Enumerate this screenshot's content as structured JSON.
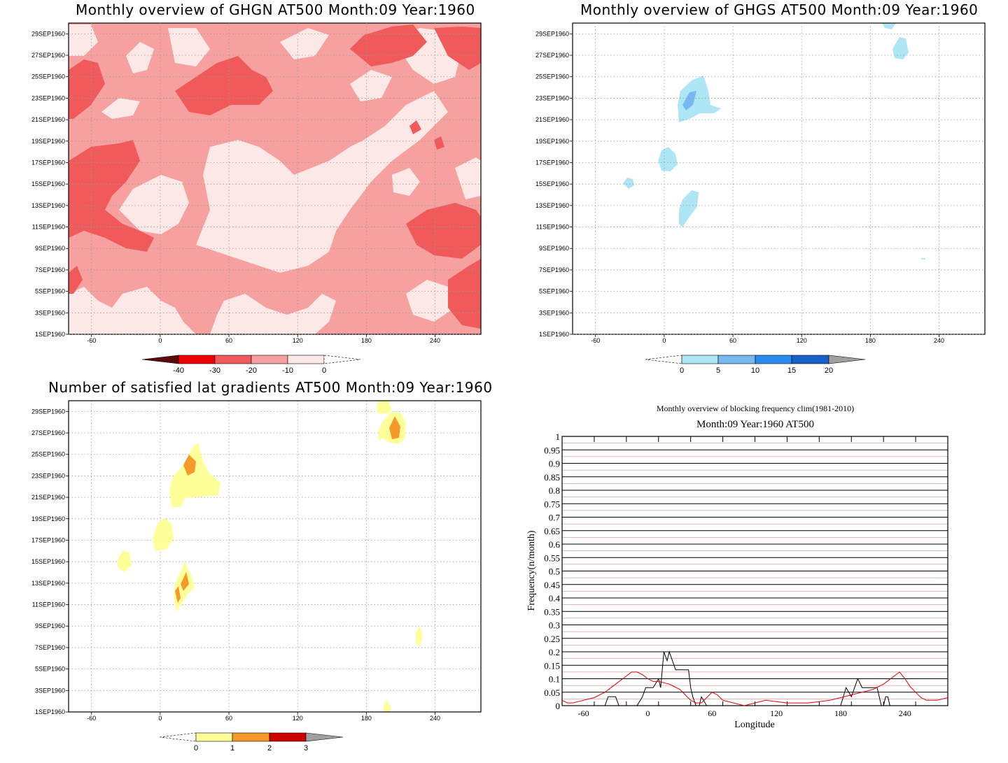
{
  "panels": {
    "p1": {
      "title": "Monthly overview of GHGN AT500 Month:09 Year:1960"
    },
    "p2": {
      "title": "Monthly overview of GHGS AT500 Month:09 Year:1960"
    },
    "p3": {
      "title": "Number of satisfied lat gradients AT500 Month:09 Year:1960"
    }
  },
  "common_axes": {
    "x_ticks": [
      "-60",
      "0",
      "60",
      "120",
      "180",
      "240"
    ],
    "x_tick_values": [
      -60,
      0,
      60,
      120,
      180,
      240
    ],
    "x_range": [
      -80,
      280
    ],
    "y_ticks": [
      "1SEP1960",
      "3SEP1960",
      "5SEP1960",
      "7SEP1960",
      "9SEP1960",
      "11SEP1960",
      "13SEP1960",
      "15SEP1960",
      "17SEP1960",
      "19SEP1960",
      "21SEP1960",
      "23SEP1960",
      "25SEP1960",
      "27SEP1960",
      "29SEP1960"
    ],
    "y_tick_values": [
      1,
      3,
      5,
      7,
      9,
      11,
      13,
      15,
      17,
      19,
      21,
      23,
      25,
      27,
      29
    ],
    "y_range": [
      1,
      30
    ]
  },
  "colorbars": {
    "p1": {
      "labels": [
        "-40",
        "-30",
        "-20",
        "-10",
        "0"
      ],
      "colors": [
        "#5a0a08",
        "#ee0000",
        "#f05a5a",
        "#f7a0a0",
        "#fde8e8"
      ]
    },
    "p2": {
      "labels": [
        "0",
        "5",
        "10",
        "15",
        "20"
      ],
      "colors": [
        "#aee6f5",
        "#78b8f0",
        "#2a8aee",
        "#1660c8",
        "#a0a0a0"
      ]
    },
    "p3": {
      "labels": [
        "0",
        "1",
        "2",
        "3"
      ],
      "colors": [
        "#ffff99",
        "#f59a2a",
        "#cc0000",
        "#a0a0a0"
      ]
    }
  },
  "chart_data": [
    {
      "type": "heatmap",
      "title": "Monthly overview of GHGN AT500 Month:09 Year:1960",
      "xlim": [
        -80,
        280
      ],
      "ylim": [
        1,
        30
      ],
      "legend_levels": [
        -40,
        -30,
        -20,
        -10,
        0
      ]
    },
    {
      "type": "heatmap",
      "title": "Monthly overview of GHGS AT500 Month:09 Year:1960",
      "xlim": [
        -80,
        280
      ],
      "ylim": [
        1,
        30
      ],
      "legend_levels": [
        0,
        5,
        10,
        15,
        20
      ]
    },
    {
      "type": "heatmap",
      "title": "Number of satisfied lat gradients AT500 Month:09 Year:1960",
      "xlim": [
        -80,
        280
      ],
      "ylim": [
        1,
        30
      ],
      "legend_levels": [
        0,
        1,
        2,
        3
      ]
    },
    {
      "type": "line",
      "title": "Monthly overview of blocking frequency clim(1981-2010)",
      "subtitle": "Month:09 Year:1960  AT500",
      "xlabel": "Longitude",
      "ylabel": "Frequency(n/month)",
      "xlim": [
        -80,
        280
      ],
      "ylim": [
        0,
        1
      ],
      "x_ticks": [
        "-60",
        "0",
        "60",
        "120",
        "180",
        "240"
      ],
      "x_tick_values": [
        -60,
        0,
        60,
        120,
        180,
        240
      ],
      "y_ticks": [
        "0",
        "0.05",
        "0.1",
        "0.15",
        "0.2",
        "0.25",
        "0.3",
        "0.35",
        "0.4",
        "0.45",
        "0.5",
        "0.55",
        "0.6",
        "0.65",
        "0.7",
        "0.75",
        "0.8",
        "0.85",
        "0.9",
        "0.95",
        "1"
      ],
      "series": [
        {
          "color": "#000000",
          "x": [
            -80,
            -40,
            -37,
            -34,
            -30,
            -27,
            -10,
            -5,
            -2,
            0,
            5,
            10,
            12,
            15,
            18,
            20,
            23,
            26,
            30,
            35,
            38,
            40,
            42,
            45,
            48,
            50,
            55,
            60,
            180,
            185,
            190,
            193,
            196,
            200,
            203,
            206,
            210,
            214,
            218,
            220,
            222,
            224,
            226,
            230,
            240,
            280
          ],
          "y": [
            0,
            0,
            0.033,
            0.033,
            0.033,
            0,
            0,
            0.033,
            0.067,
            0.067,
            0.067,
            0.1,
            0.067,
            0.2,
            0.167,
            0.2,
            0.167,
            0.133,
            0.133,
            0.133,
            0.133,
            0.067,
            0.033,
            0,
            0,
            0.033,
            0,
            0,
            0,
            0.067,
            0.033,
            0.067,
            0.1,
            0.067,
            0.067,
            0.067,
            0.067,
            0.067,
            0,
            0,
            0.033,
            0.033,
            0,
            0,
            0,
            0
          ]
        },
        {
          "color": "#dd0000",
          "x": [
            -80,
            -75,
            -70,
            -60,
            -50,
            -40,
            -30,
            -20,
            -15,
            -10,
            -5,
            0,
            5,
            10,
            15,
            20,
            25,
            30,
            35,
            40,
            45,
            50,
            55,
            60,
            65,
            70,
            80,
            90,
            100,
            110,
            120,
            130,
            140,
            150,
            160,
            170,
            180,
            190,
            200,
            210,
            220,
            230,
            235,
            240,
            245,
            250,
            255,
            260,
            270,
            280
          ],
          "y": [
            0.02,
            0.01,
            0.01,
            0.02,
            0.03,
            0.05,
            0.08,
            0.11,
            0.125,
            0.125,
            0.115,
            0.1,
            0.09,
            0.09,
            0.085,
            0.08,
            0.07,
            0.06,
            0.04,
            0.02,
            0.01,
            0.01,
            0.03,
            0.05,
            0.04,
            0.02,
            0.01,
            0,
            0.01,
            0.02,
            0.015,
            0.01,
            0.01,
            0.01,
            0.015,
            0.02,
            0.03,
            0.04,
            0.05,
            0.06,
            0.08,
            0.11,
            0.125,
            0.1,
            0.07,
            0.05,
            0.03,
            0.02,
            0.02,
            0.03
          ]
        }
      ]
    }
  ]
}
